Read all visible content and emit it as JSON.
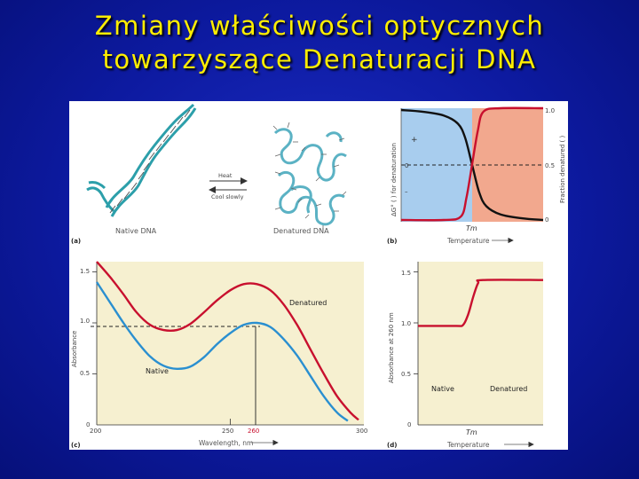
{
  "slide": {
    "title_line1": "Zmiany właściwości  optycznych",
    "title_line2": "towarzyszące Denaturacji DNA"
  },
  "colors": {
    "background": "#0d1aa0",
    "title": "#ffee00",
    "native_region": "#a8cdee",
    "denatured_region": "#f2a88e",
    "plot_background": "#f6f0d0",
    "red_curve": "#c8102e",
    "blue_curve": "#2a8fd0"
  },
  "panels": {
    "a": {
      "tag": "(a)",
      "native_label": "Native DNA",
      "denatured_label": "Denatured DNA",
      "arrow_top_label": "Heat",
      "arrow_bottom_label": "Cool slowly"
    },
    "b": {
      "tag": "(b)",
      "left_axis_label": "ΔG° (   ) for denaturation",
      "right_axis_label": "Fraction denatured (   )",
      "left_ticks": [
        "+",
        "0",
        "–"
      ],
      "right_ticks": [
        "1.0",
        "0.5",
        "0"
      ],
      "tm_label": "Tm",
      "x_label": "Temperature"
    },
    "c": {
      "tag": "(c)",
      "xlabel": "Wavelength, nm",
      "ylabel": "Absorbance",
      "x_ticks": [
        "200",
        "250",
        "260",
        "300"
      ],
      "y_ticks": [
        "1.5",
        "1.0",
        "0.5",
        "0"
      ],
      "denatured_label": "Denatured",
      "native_label": "Native"
    },
    "d": {
      "tag": "(d)",
      "xlabel": "Temperature",
      "ylabel": "Absorbance at 260 nm",
      "y_ticks": [
        "1.5",
        "1.0",
        "0.5",
        "0"
      ],
      "native_label": "Native",
      "denatured_label": "Denatured",
      "tm_label": "Tm"
    }
  },
  "chart_data": [
    {
      "type": "line",
      "panel": "b",
      "x_label": "Temperature",
      "series": [
        {
          "name": "ΔG° for denaturation",
          "color": "black",
          "x": [
            0,
            0.15,
            0.3,
            0.4,
            0.45,
            0.5,
            0.55,
            0.6,
            0.7,
            0.85,
            1.0
          ],
          "y": [
            1.0,
            0.97,
            0.9,
            0.75,
            0.5,
            0.0,
            -0.5,
            -0.75,
            -0.9,
            -0.97,
            -1.0
          ]
        },
        {
          "name": "Fraction denatured",
          "color": "red",
          "x": [
            0,
            0.3,
            0.42,
            0.46,
            0.5,
            0.54,
            0.58,
            0.7,
            1.0
          ],
          "y": [
            0.0,
            0.0,
            0.03,
            0.2,
            0.5,
            0.8,
            0.97,
            1.0,
            1.0
          ]
        }
      ]
    },
    {
      "type": "line",
      "panel": "c",
      "xlabel": "Wavelength, nm",
      "ylabel": "Absorbance",
      "xlim": [
        200,
        300
      ],
      "ylim": [
        0,
        1.6
      ],
      "series": [
        {
          "name": "Denatured",
          "color": "red",
          "x": [
            200,
            205,
            210,
            215,
            220,
            225,
            230,
            235,
            240,
            245,
            250,
            255,
            260,
            265,
            270,
            275,
            280,
            285,
            290,
            295,
            298
          ],
          "y": [
            1.6,
            1.45,
            1.28,
            1.1,
            0.98,
            0.93,
            0.93,
            0.99,
            1.1,
            1.22,
            1.32,
            1.38,
            1.38,
            1.32,
            1.18,
            0.98,
            0.74,
            0.5,
            0.28,
            0.12,
            0.05
          ]
        },
        {
          "name": "Native",
          "color": "blue",
          "x": [
            200,
            205,
            210,
            215,
            220,
            225,
            230,
            235,
            240,
            245,
            250,
            255,
            260,
            265,
            270,
            275,
            280,
            285,
            290,
            294
          ],
          "y": [
            1.4,
            1.2,
            1.0,
            0.82,
            0.67,
            0.58,
            0.55,
            0.57,
            0.66,
            0.79,
            0.9,
            0.98,
            1.0,
            0.96,
            0.84,
            0.68,
            0.48,
            0.28,
            0.12,
            0.04
          ]
        }
      ]
    },
    {
      "type": "line",
      "panel": "d",
      "xlabel": "Temperature",
      "ylabel": "Absorbance at 260 nm",
      "ylim": [
        0,
        1.6
      ],
      "series": [
        {
          "name": "Absorbance at 260 nm",
          "color": "red",
          "x": [
            0,
            0.3,
            0.36,
            0.4,
            0.44,
            0.48,
            0.52,
            1.0
          ],
          "y": [
            0.97,
            0.97,
            0.98,
            1.08,
            1.25,
            1.39,
            1.42,
            1.42
          ]
        }
      ]
    }
  ]
}
